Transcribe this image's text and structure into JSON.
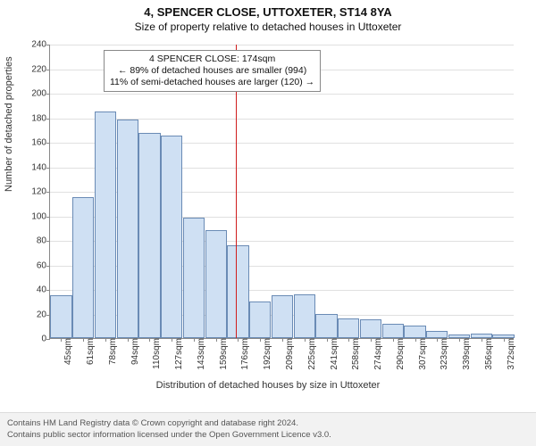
{
  "title_main": "4, SPENCER CLOSE, UTTOXETER, ST14 8YA",
  "title_sub": "Size of property relative to detached houses in Uttoxeter",
  "chart": {
    "type": "histogram",
    "ylabel": "Number of detached properties",
    "xlabel": "Distribution of detached houses by size in Uttoxeter",
    "ylim": [
      0,
      240
    ],
    "ytick_step": 20,
    "bar_fill": "#cfe0f3",
    "bar_stroke": "#6a8bb5",
    "grid_color": "#e0e0e0",
    "background_color": "#ffffff",
    "categories": [
      "45sqm",
      "61sqm",
      "78sqm",
      "94sqm",
      "110sqm",
      "127sqm",
      "143sqm",
      "159sqm",
      "176sqm",
      "192sqm",
      "209sqm",
      "225sqm",
      "241sqm",
      "258sqm",
      "274sqm",
      "290sqm",
      "307sqm",
      "323sqm",
      "339sqm",
      "356sqm",
      "372sqm"
    ],
    "values": [
      35,
      115,
      185,
      178,
      167,
      165,
      98,
      88,
      76,
      30,
      35,
      36,
      20,
      16,
      15,
      12,
      10,
      6,
      3,
      4,
      3
    ],
    "marker": {
      "value_sqm": 174,
      "color": "#d01c1c",
      "bin_index_after": 8
    },
    "annotation": {
      "lines": [
        "4 SPENCER CLOSE: 174sqm",
        "← 89% of detached houses are smaller (994)",
        "11% of semi-detached houses are larger (120) →"
      ],
      "border_color": "#888888",
      "background": "#ffffff",
      "fontsize": 10.5
    },
    "title_fontsize": 13,
    "subtitle_fontsize": 12,
    "tick_fontsize": 10,
    "axis_label_fontsize": 11
  },
  "footer": {
    "line1": "Contains HM Land Registry data © Crown copyright and database right 2024.",
    "line2": "Contains public sector information licensed under the Open Government Licence v3.0."
  }
}
